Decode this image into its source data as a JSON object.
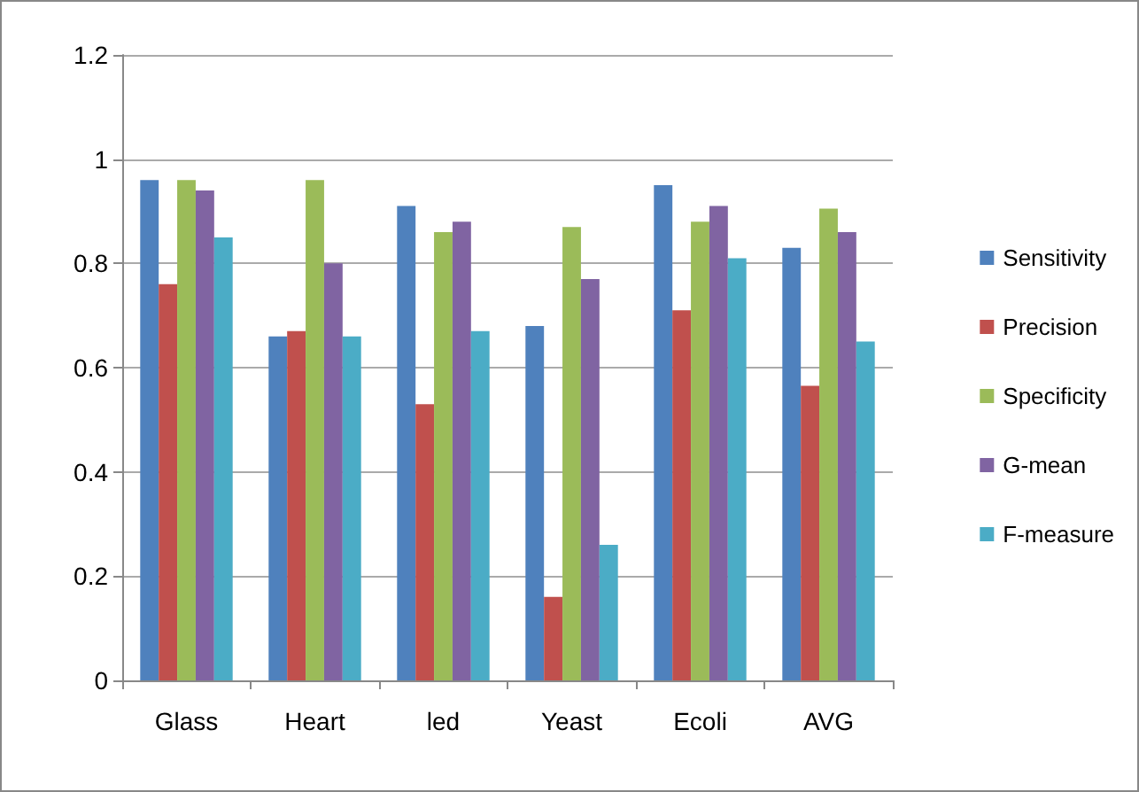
{
  "chart_data": {
    "type": "bar",
    "categories": [
      "Glass",
      "Heart",
      "led",
      "Yeast",
      "Ecoli",
      "AVG"
    ],
    "series": [
      {
        "name": "Sensitivity",
        "color": "#4f81bd",
        "values": [
          0.96,
          0.66,
          0.91,
          0.68,
          0.95,
          0.83
        ]
      },
      {
        "name": "Precision",
        "color": "#c0504d",
        "values": [
          0.76,
          0.67,
          0.53,
          0.16,
          0.71,
          0.565
        ]
      },
      {
        "name": "Specificity",
        "color": "#9bbb59",
        "values": [
          0.96,
          0.96,
          0.86,
          0.87,
          0.88,
          0.905
        ]
      },
      {
        "name": "G-mean",
        "color": "#8064a2",
        "values": [
          0.94,
          0.8,
          0.88,
          0.77,
          0.91,
          0.86
        ]
      },
      {
        "name": "F-measure",
        "color": "#4bacc6",
        "values": [
          0.85,
          0.66,
          0.67,
          0.26,
          0.81,
          0.65
        ]
      }
    ],
    "ylim": [
      0,
      1.2
    ],
    "yticks": [
      0,
      0.2,
      0.4,
      0.6,
      0.8,
      1,
      1.2
    ],
    "grid": "y",
    "legend": "right"
  }
}
